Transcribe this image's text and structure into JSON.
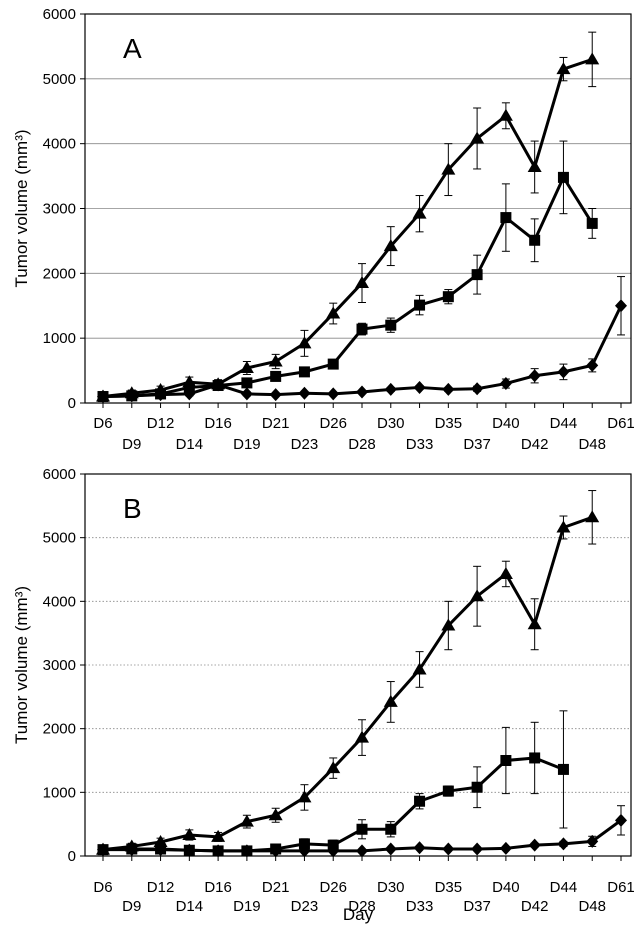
{
  "chart_data": [
    {
      "type": "line",
      "panel_label": "A",
      "ylabel": "Tumor volume (mm³)",
      "xlabel": "",
      "ylim": [
        0,
        6000
      ],
      "yticks": [
        0,
        1000,
        2000,
        3000,
        4000,
        5000,
        6000
      ],
      "grid": "horizontal solid",
      "categories": [
        "D6",
        "D9",
        "D12",
        "D14",
        "D16",
        "D19",
        "D21",
        "D23",
        "D26",
        "D28",
        "D30",
        "D33",
        "D35",
        "D37",
        "D40",
        "D42",
        "D44",
        "D48",
        "D61"
      ],
      "series": [
        {
          "marker": "triangle",
          "values": [
            100,
            150,
            200,
            320,
            290,
            540,
            640,
            920,
            1380,
            1850,
            2420,
            2920,
            3600,
            4080,
            4430,
            3640,
            5150,
            5300,
            null
          ],
          "errors": [
            40,
            50,
            60,
            80,
            70,
            100,
            110,
            200,
            160,
            300,
            300,
            280,
            400,
            470,
            200,
            400,
            180,
            420,
            null
          ]
        },
        {
          "marker": "square",
          "values": [
            100,
            110,
            140,
            240,
            270,
            310,
            410,
            480,
            600,
            1140,
            1200,
            1510,
            1640,
            1980,
            2860,
            2510,
            3480,
            2770,
            null
          ],
          "errors": [
            30,
            30,
            40,
            50,
            60,
            70,
            70,
            60,
            60,
            90,
            110,
            150,
            110,
            300,
            520,
            330,
            560,
            230,
            null
          ]
        },
        {
          "marker": "diamond",
          "values": [
            100,
            110,
            130,
            140,
            280,
            140,
            130,
            150,
            140,
            170,
            210,
            240,
            210,
            220,
            300,
            420,
            480,
            580,
            1500
          ],
          "errors": [
            20,
            20,
            20,
            30,
            40,
            30,
            20,
            20,
            20,
            20,
            30,
            30,
            30,
            40,
            70,
            110,
            120,
            100,
            450
          ]
        }
      ]
    },
    {
      "type": "line",
      "panel_label": "B",
      "ylabel": "Tumor volume (mm³)",
      "xlabel": "Day",
      "ylim": [
        0,
        6000
      ],
      "yticks": [
        0,
        1000,
        2000,
        3000,
        4000,
        5000,
        6000
      ],
      "grid": "horizontal dotted",
      "categories": [
        "D6",
        "D9",
        "D12",
        "D14",
        "D16",
        "D19",
        "D21",
        "D23",
        "D26",
        "D28",
        "D30",
        "D33",
        "D35",
        "D37",
        "D40",
        "D42",
        "D44",
        "D48",
        "D61"
      ],
      "series": [
        {
          "marker": "triangle",
          "values": [
            100,
            150,
            220,
            330,
            300,
            540,
            640,
            920,
            1380,
            1860,
            2420,
            2930,
            3620,
            4080,
            4430,
            3640,
            5160,
            5320,
            null
          ],
          "errors": [
            40,
            50,
            60,
            80,
            70,
            100,
            110,
            200,
            160,
            280,
            320,
            280,
            380,
            470,
            200,
            400,
            180,
            420,
            null
          ]
        },
        {
          "marker": "square",
          "values": [
            100,
            110,
            110,
            90,
            80,
            80,
            110,
            190,
            170,
            420,
            420,
            860,
            1020,
            1080,
            1500,
            1540,
            1360,
            null,
            null
          ],
          "errors": [
            20,
            20,
            20,
            20,
            20,
            20,
            40,
            80,
            80,
            150,
            120,
            120,
            80,
            320,
            520,
            560,
            920,
            null,
            null
          ]
        },
        {
          "marker": "diamond",
          "values": [
            100,
            100,
            100,
            90,
            80,
            80,
            80,
            80,
            80,
            80,
            110,
            130,
            110,
            110,
            120,
            170,
            190,
            230,
            560
          ],
          "errors": [
            20,
            20,
            20,
            20,
            20,
            20,
            20,
            20,
            20,
            20,
            20,
            20,
            20,
            20,
            20,
            30,
            40,
            80,
            230
          ]
        }
      ]
    }
  ]
}
